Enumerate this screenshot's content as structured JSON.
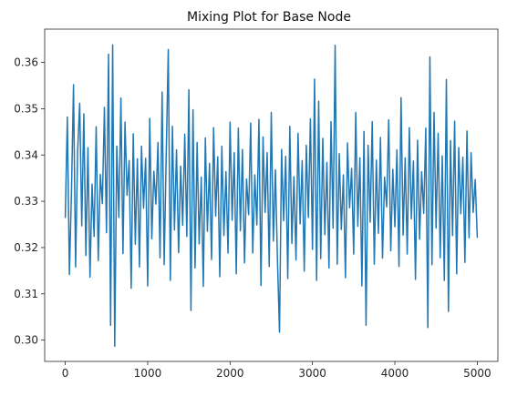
{
  "chart_data": {
    "type": "line",
    "title": "Mixing Plot for Base Node",
    "xlabel": "",
    "ylabel": "",
    "xlim": [
      -250,
      5250
    ],
    "ylim": [
      0.2954,
      0.3672
    ],
    "xticks": [
      0,
      1000,
      2000,
      3000,
      4000,
      5000
    ],
    "xtick_labels": [
      "0",
      "1000",
      "2000",
      "3000",
      "4000",
      "5000"
    ],
    "yticks": [
      0.3,
      0.31,
      0.32,
      0.33,
      0.34,
      0.35,
      0.36
    ],
    "ytick_labels": [
      "0.30",
      "0.31",
      "0.32",
      "0.33",
      "0.34",
      "0.35",
      "0.36"
    ],
    "grid": false,
    "series_color": "#1f77b4",
    "series": [
      {
        "x": [
          0,
          25,
          50,
          75,
          100,
          125,
          150,
          175,
          200,
          225,
          250,
          275,
          300,
          325,
          350,
          375,
          400,
          425,
          450,
          475,
          500,
          525,
          550,
          575,
          600,
          625,
          650,
          675,
          700,
          725,
          750,
          775,
          800,
          825,
          850,
          875,
          900,
          925,
          950,
          975,
          1000,
          1025,
          1050,
          1075,
          1100,
          1125,
          1150,
          1175,
          1200,
          1225,
          1250,
          1275,
          1300,
          1325,
          1350,
          1375,
          1400,
          1425,
          1450,
          1475,
          1500,
          1525,
          1550,
          1575,
          1600,
          1625,
          1650,
          1675,
          1700,
          1725,
          1750,
          1775,
          1800,
          1825,
          1850,
          1875,
          1900,
          1925,
          1950,
          1975,
          2000,
          2025,
          2050,
          2075,
          2100,
          2125,
          2150,
          2175,
          2200,
          2225,
          2250,
          2275,
          2300,
          2325,
          2350,
          2375,
          2400,
          2425,
          2450,
          2475,
          2500,
          2525,
          2550,
          2575,
          2600,
          2625,
          2650,
          2675,
          2700,
          2725,
          2750,
          2775,
          2800,
          2825,
          2850,
          2875,
          2900,
          2925,
          2950,
          2975,
          3000,
          3025,
          3050,
          3075,
          3100,
          3125,
          3150,
          3175,
          3200,
          3225,
          3250,
          3275,
          3300,
          3325,
          3350,
          3375,
          3400,
          3425,
          3450,
          3475,
          3500,
          3525,
          3550,
          3575,
          3600,
          3625,
          3650,
          3675,
          3700,
          3725,
          3750,
          3775,
          3800,
          3825,
          3850,
          3875,
          3900,
          3925,
          3950,
          3975,
          4000,
          4025,
          4050,
          4075,
          4100,
          4125,
          4150,
          4175,
          4200,
          4225,
          4250,
          4275,
          4300,
          4325,
          4350,
          4375,
          4400,
          4425,
          4450,
          4475,
          4500,
          4525,
          4550,
          4575,
          4600,
          4625,
          4650,
          4675,
          4700,
          4725,
          4750,
          4775,
          4800,
          4825,
          4850,
          4875,
          4900,
          4925,
          4950,
          4975,
          5000
        ],
        "y": [
          0.3265,
          0.3482,
          0.3142,
          0.3318,
          0.3552,
          0.3158,
          0.3409,
          0.3512,
          0.3247,
          0.3489,
          0.3183,
          0.3416,
          0.3136,
          0.3337,
          0.3224,
          0.3461,
          0.3172,
          0.3358,
          0.3295,
          0.3503,
          0.3232,
          0.3618,
          0.3032,
          0.3638,
          0.2987,
          0.3419,
          0.3265,
          0.3523,
          0.3187,
          0.3471,
          0.3313,
          0.3388,
          0.3112,
          0.3446,
          0.3207,
          0.3392,
          0.3158,
          0.3419,
          0.3285,
          0.3393,
          0.3117,
          0.3479,
          0.3219,
          0.3365,
          0.3294,
          0.3427,
          0.3178,
          0.3536,
          0.3163,
          0.3402,
          0.3628,
          0.3129,
          0.3462,
          0.3238,
          0.3411,
          0.3189,
          0.3376,
          0.3248,
          0.3445,
          0.3224,
          0.3541,
          0.3064,
          0.3498,
          0.3156,
          0.3427,
          0.3208,
          0.3352,
          0.3116,
          0.3437,
          0.3235,
          0.3382,
          0.3174,
          0.3459,
          0.3268,
          0.3396,
          0.3137,
          0.3419,
          0.3226,
          0.3364,
          0.3188,
          0.3471,
          0.3259,
          0.3405,
          0.3143,
          0.3458,
          0.3236,
          0.3412,
          0.3167,
          0.3348,
          0.3271,
          0.3469,
          0.3188,
          0.3357,
          0.3249,
          0.3477,
          0.3118,
          0.3439,
          0.3276,
          0.3405,
          0.3159,
          0.3492,
          0.3214,
          0.3368,
          0.3172,
          0.3017,
          0.3412,
          0.3258,
          0.3397,
          0.3133,
          0.3462,
          0.3209,
          0.3353,
          0.3173,
          0.3447,
          0.3251,
          0.3388,
          0.3149,
          0.3421,
          0.3265,
          0.3478,
          0.3196,
          0.3564,
          0.3129,
          0.3516,
          0.3176,
          0.3436,
          0.3228,
          0.3384,
          0.3156,
          0.3472,
          0.3242,
          0.3637,
          0.3164,
          0.3403,
          0.3239,
          0.3357,
          0.3135,
          0.3426,
          0.3286,
          0.3371,
          0.3186,
          0.3492,
          0.3246,
          0.3394,
          0.3117,
          0.3451,
          0.3032,
          0.3421,
          0.3255,
          0.3472,
          0.3164,
          0.3389,
          0.3231,
          0.3438,
          0.3177,
          0.3352,
          0.3288,
          0.3476,
          0.3193,
          0.3369,
          0.3245,
          0.3411,
          0.3159,
          0.3524,
          0.3227,
          0.3394,
          0.3186,
          0.3459,
          0.3262,
          0.3387,
          0.3131,
          0.3432,
          0.3218,
          0.3364,
          0.3274,
          0.3458,
          0.3027,
          0.3612,
          0.3163,
          0.3492,
          0.3242,
          0.3447,
          0.3178,
          0.3398,
          0.3129,
          0.3563,
          0.3062,
          0.3431,
          0.3226,
          0.3473,
          0.3143,
          0.3416,
          0.3273,
          0.3395,
          0.3168,
          0.3452,
          0.3221,
          0.3405,
          0.3276,
          0.3347,
          0.3222
        ]
      }
    ]
  }
}
